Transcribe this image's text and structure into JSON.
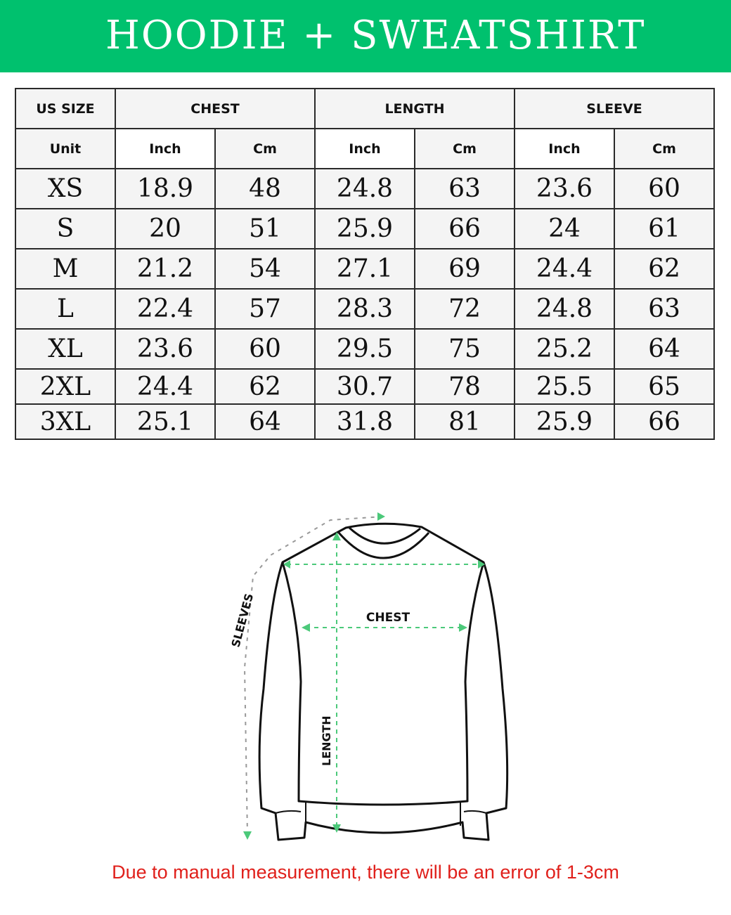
{
  "title": "HOODIE + SWEATSHIRT",
  "table": {
    "headers": [
      "US SIZE",
      "CHEST",
      "LENGTH",
      "SLEEVE"
    ],
    "units": [
      "Unit",
      "Inch",
      "Cm",
      "Inch",
      "Cm",
      "Inch",
      "Cm"
    ],
    "rows": [
      [
        "XS",
        "18.9",
        "48",
        "24.8",
        "63",
        "23.6",
        "60"
      ],
      [
        "S",
        "20",
        "51",
        "25.9",
        "66",
        "24",
        "61"
      ],
      [
        "M",
        "21.2",
        "54",
        "27.1",
        "69",
        "24.4",
        "62"
      ],
      [
        "L",
        "22.4",
        "57",
        "28.3",
        "72",
        "24.8",
        "63"
      ],
      [
        "XL",
        "23.6",
        "60",
        "29.5",
        "75",
        "25.2",
        "64"
      ],
      [
        "2XL",
        "24.4",
        "62",
        "30.7",
        "78",
        "25.5",
        "65"
      ],
      [
        "3XL",
        "25.1",
        "64",
        "31.8",
        "81",
        "25.9",
        "66"
      ]
    ]
  },
  "diagram": {
    "chest_label": "CHEST",
    "length_label": "LENGTH",
    "sleeves_label": "SLEEVES"
  },
  "note": "Due to manual measurement, there will be an error of 1-3cm",
  "colors": {
    "banner": "#00c16e",
    "note": "#e0201b",
    "measure_lines": "#4cc97a"
  }
}
